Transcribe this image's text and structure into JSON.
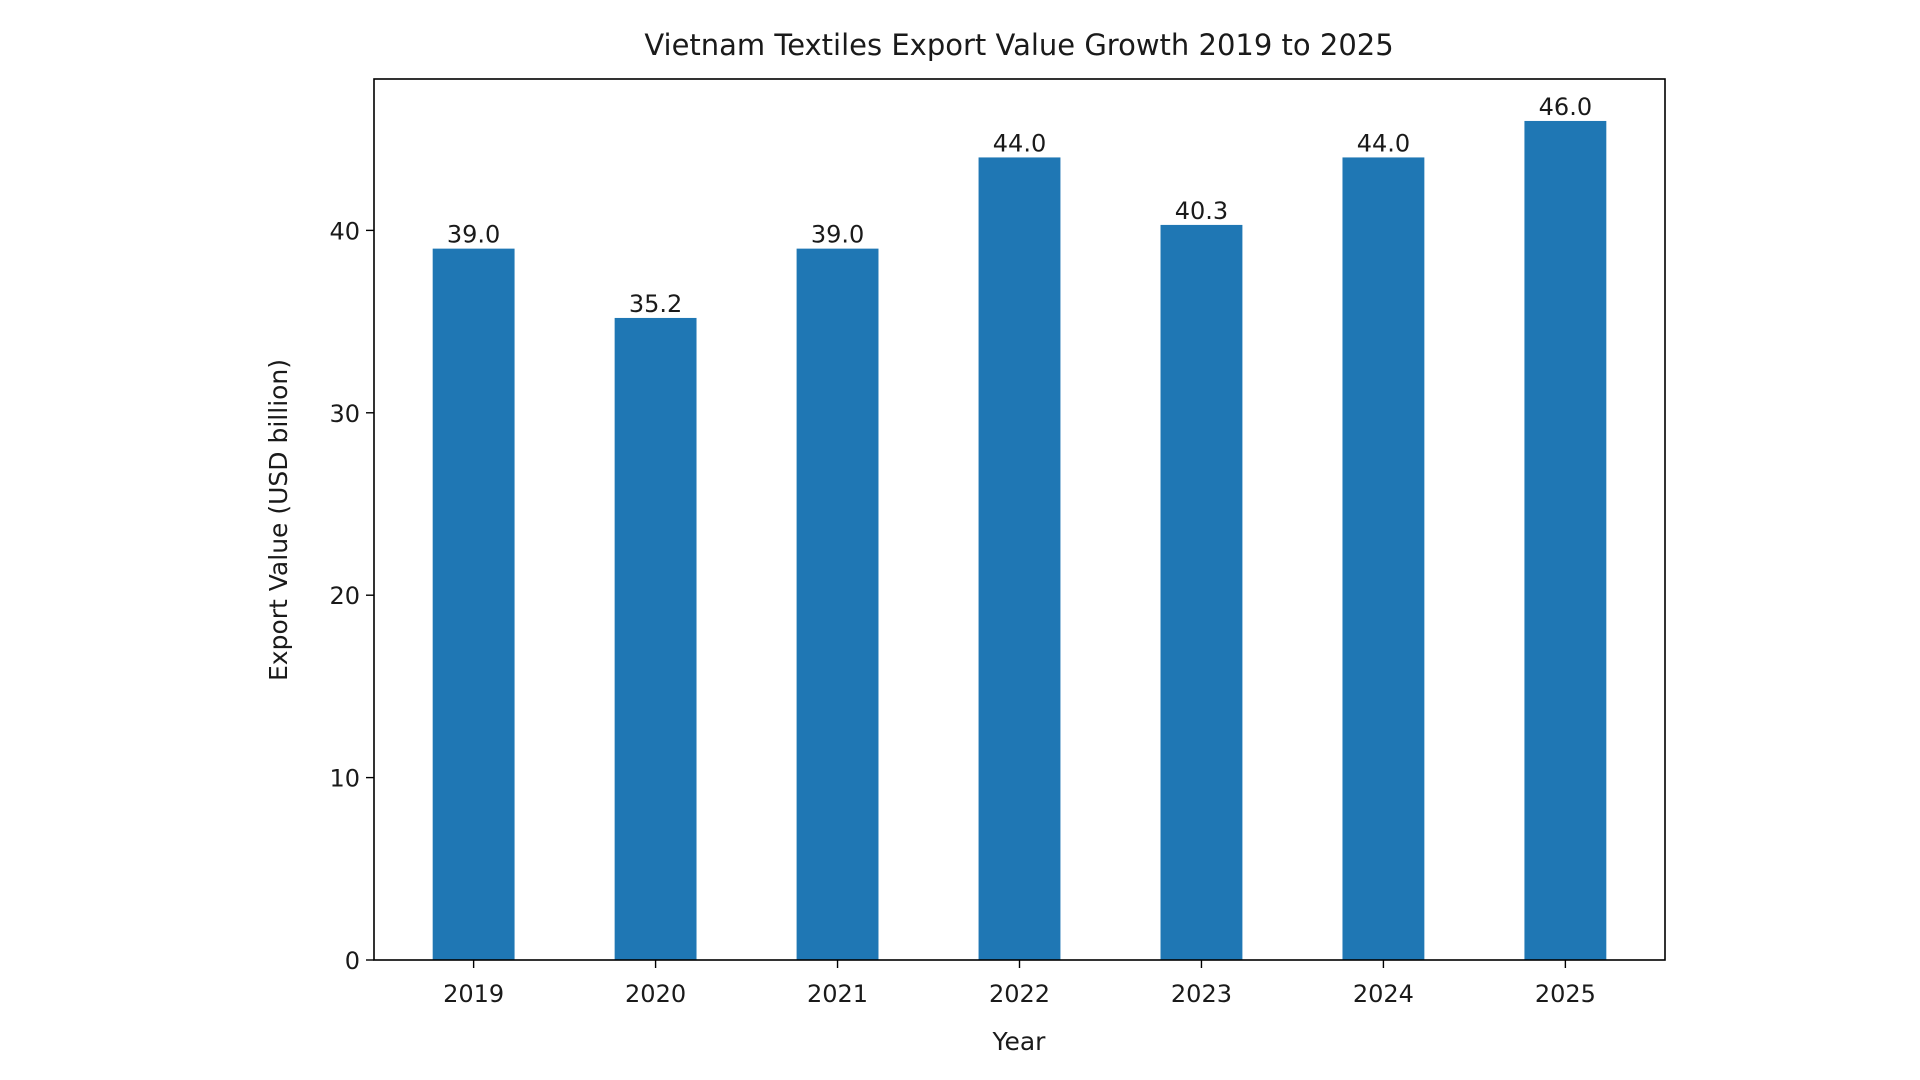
{
  "chart_data": {
    "type": "bar",
    "title": "Vietnam Textiles Export Value Growth 2019 to 2025",
    "xlabel": "Year",
    "ylabel": "Export Value (USD billion)",
    "categories": [
      "2019",
      "2020",
      "2021",
      "2022",
      "2023",
      "2024",
      "2025"
    ],
    "values": [
      39.0,
      35.2,
      39.0,
      44.0,
      40.3,
      44.0,
      46.0
    ],
    "data_labels": [
      "39.0",
      "35.2",
      "39.0",
      "44.0",
      "40.3",
      "44.0",
      "46.0"
    ],
    "ylim": [
      0,
      48.3
    ],
    "yticks": [
      0,
      10,
      20,
      30,
      40
    ],
    "grid": false,
    "legend": "none",
    "bar_color": "#1f77b4"
  }
}
